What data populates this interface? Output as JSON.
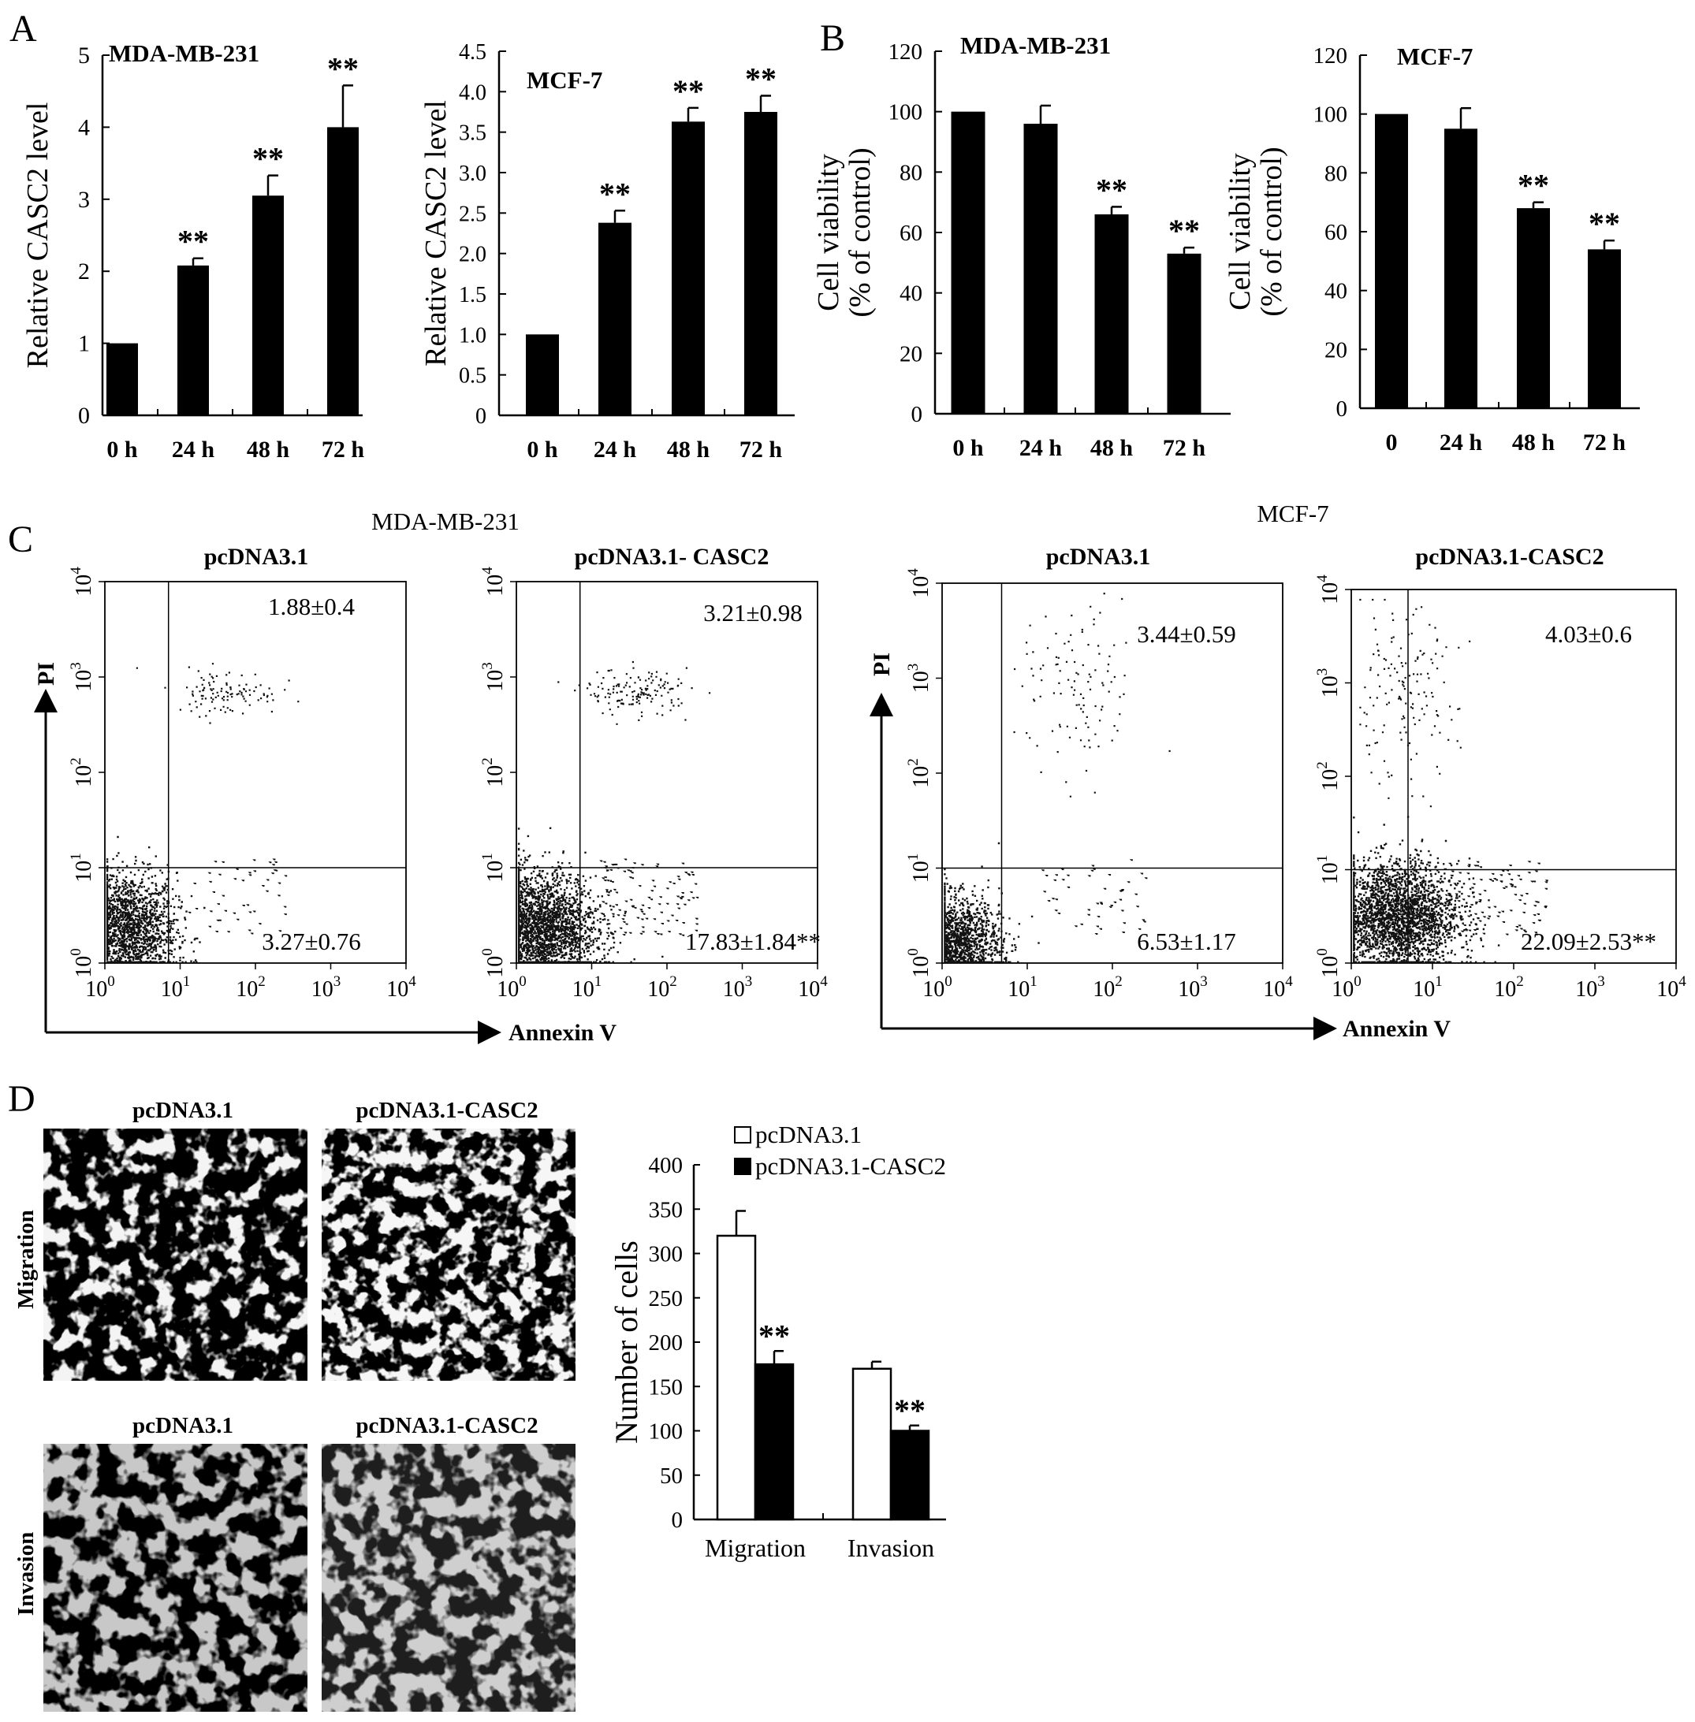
{
  "figure": {
    "panels": {
      "a": {
        "label": "A"
      },
      "b": {
        "label": "B"
      },
      "c": {
        "label": "C",
        "group_left": "MDA-MB-231",
        "group_right": "MCF-7",
        "x_axis": "Annexin V",
        "y_axis": "PI"
      },
      "d": {
        "label": "D",
        "images": [
          {
            "title": "pcDNA3.1",
            "row": "Migration"
          },
          {
            "title": "pcDNA3.1-CASC2",
            "row": "Migration"
          },
          {
            "title": "pcDNA3.1",
            "row": "Invasion"
          },
          {
            "title": "pcDNA3.1-CASC2",
            "row": "Invasion"
          }
        ],
        "row_labels": [
          "Migration",
          "Invasion"
        ]
      }
    },
    "colors": {
      "bar": "#000000",
      "open_bar": "#ffffff",
      "dots": "#111111"
    }
  },
  "chart_data": [
    {
      "id": "a1",
      "type": "bar",
      "title": "MDA-MB-231",
      "ylabel": "Relative CASC2 level",
      "categories": [
        "0 h",
        "24 h",
        "48 h",
        "72 h"
      ],
      "values": [
        1.0,
        2.08,
        3.05,
        4.0
      ],
      "errors": [
        0,
        0.1,
        0.28,
        0.58
      ],
      "significance": [
        "",
        "**",
        "**",
        "**"
      ],
      "ylim": [
        0,
        5
      ],
      "yticks": [
        "0",
        "1",
        "2",
        "3",
        "4",
        "5"
      ]
    },
    {
      "id": "a2",
      "type": "bar",
      "title": "MCF-7",
      "ylabel": "Relative CASC2 level",
      "categories": [
        "0 h",
        "24 h",
        "48 h",
        "72 h"
      ],
      "values": [
        1.0,
        2.38,
        3.63,
        3.75
      ],
      "errors": [
        0,
        0.15,
        0.17,
        0.2
      ],
      "significance": [
        "",
        "**",
        "**",
        "**"
      ],
      "ylim": [
        0,
        4.5
      ],
      "yticks": [
        "0",
        "0.5",
        "1.0",
        "1.5",
        "2.0",
        "2.5",
        "3.0",
        "3.5",
        "4.0",
        "4.5"
      ]
    },
    {
      "id": "b1",
      "type": "bar",
      "title": "MDA-MB-231",
      "ylabel": [
        "Cell viability",
        "(% of control)"
      ],
      "categories": [
        "0 h",
        "24 h",
        "48 h",
        "72 h"
      ],
      "values": [
        100,
        96,
        66,
        53
      ],
      "errors": [
        0,
        6,
        2.5,
        2
      ],
      "significance": [
        "",
        "",
        "**",
        "**"
      ],
      "ylim": [
        0,
        120
      ],
      "yticks": [
        "0",
        "20",
        "40",
        "60",
        "80",
        "100",
        "120"
      ]
    },
    {
      "id": "b2",
      "type": "bar",
      "title": "MCF-7",
      "ylabel": [
        "Cell viability",
        "(% of control)"
      ],
      "categories": [
        "0",
        "24 h",
        "48 h",
        "72 h"
      ],
      "values": [
        100,
        95,
        68,
        54
      ],
      "errors": [
        0,
        7,
        2,
        3
      ],
      "significance": [
        "",
        "",
        "**",
        "**"
      ],
      "ylim": [
        0,
        120
      ],
      "yticks": [
        "0",
        "20",
        "40",
        "60",
        "80",
        "100",
        "120"
      ]
    },
    {
      "id": "c1",
      "type": "scatter",
      "cell_line": "MDA-MB-231",
      "title": "pcDNA3.1",
      "xlabel": "Annexin V",
      "ylabel": "PI",
      "scale": "log",
      "range": [
        1,
        10000
      ],
      "gate": [
        7,
        10
      ],
      "quadrant_values": {
        "upper_right": "1.88±0.4",
        "lower_right": "3.27±0.76"
      },
      "tick_bases": [
        "10",
        "10",
        "10",
        "10",
        "10"
      ],
      "tick_exponents": [
        "0",
        "1",
        "2",
        "3",
        "4"
      ]
    },
    {
      "id": "c2",
      "type": "scatter",
      "cell_line": "MDA-MB-231",
      "title": "pcDNA3.1- CASC2",
      "xlabel": "Annexin V",
      "ylabel": "PI",
      "scale": "log",
      "range": [
        1,
        10000
      ],
      "gate": [
        7,
        10
      ],
      "quadrant_values": {
        "upper_right": "3.21±0.98",
        "lower_right": "17.83±1.84**"
      },
      "tick_bases": [
        "10",
        "10",
        "10",
        "10",
        "10"
      ],
      "tick_exponents": [
        "0",
        "1",
        "2",
        "3",
        "4"
      ]
    },
    {
      "id": "c3",
      "type": "scatter",
      "cell_line": "MCF-7",
      "title": "pcDNA3.1",
      "xlabel": "Annexin V",
      "ylabel": "PI",
      "scale": "log",
      "range": [
        1,
        10000
      ],
      "gate": [
        5,
        10
      ],
      "quadrant_values": {
        "upper_right": "3.44±0.59",
        "lower_right": "6.53±1.17"
      },
      "tick_bases": [
        "10",
        "10",
        "10",
        "10",
        "10"
      ],
      "tick_exponents": [
        "0",
        "1",
        "2",
        "3",
        "4"
      ]
    },
    {
      "id": "c4",
      "type": "scatter",
      "cell_line": "MCF-7",
      "title": "pcDNA3.1-CASC2",
      "xlabel": "Annexin V",
      "ylabel": "PI",
      "scale": "log",
      "range": [
        1,
        10000
      ],
      "gate": [
        5,
        10
      ],
      "quadrant_values": {
        "upper_right": "4.03±0.6",
        "lower_right": "22.09±2.53**"
      },
      "tick_bases": [
        "10",
        "10",
        "10",
        "10",
        "10"
      ],
      "tick_exponents": [
        "0",
        "1",
        "2",
        "3",
        "4"
      ]
    },
    {
      "id": "d1",
      "type": "bar",
      "ylabel": "Number of cells",
      "categories": [
        "Migration",
        "Invasion"
      ],
      "series": [
        {
          "name": "pcDNA3.1",
          "values": [
            320,
            170
          ],
          "errors": [
            28,
            8
          ],
          "significance": [
            "",
            ""
          ]
        },
        {
          "name": "pcDNA3.1-CASC2",
          "values": [
            175,
            100
          ],
          "errors": [
            15,
            6
          ],
          "significance": [
            "**",
            "**"
          ]
        }
      ],
      "ylim": [
        0,
        400
      ],
      "yticks": [
        "0",
        "50",
        "100",
        "150",
        "200",
        "250",
        "300",
        "350",
        "400"
      ],
      "legend": "top-right"
    }
  ]
}
